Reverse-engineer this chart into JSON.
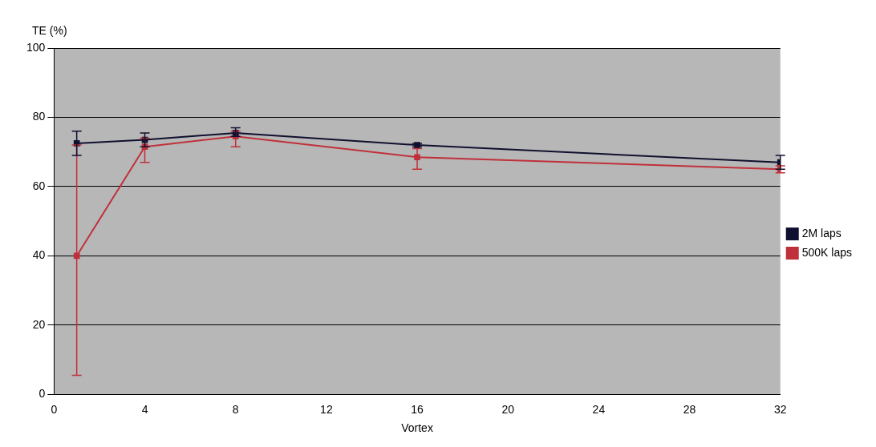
{
  "chart_data": {
    "type": "line",
    "xlabel": "Vortex",
    "ylabel": "TE (%)",
    "x": [
      1,
      4,
      8,
      16,
      32
    ],
    "series": [
      {
        "name": "500K laps",
        "color": "#c0303a",
        "values": [
          40,
          71.5,
          74.5,
          68.5,
          65
        ],
        "errors": [
          [
            5.5,
            72
          ],
          [
            67,
            74
          ],
          [
            71.5,
            76
          ],
          [
            65,
            71
          ],
          [
            64,
            66
          ]
        ]
      },
      {
        "name": "2M laps",
        "color": "#101030",
        "values": [
          72.5,
          73.5,
          75.5,
          72,
          67
        ],
        "errors": [
          [
            69,
            76
          ],
          [
            71.5,
            75.5
          ],
          [
            74.5,
            77
          ],
          [
            71.5,
            72.5
          ],
          [
            65,
            69
          ]
        ]
      }
    ],
    "xlim": [
      0,
      32
    ],
    "xticks": [
      0,
      4,
      8,
      12,
      16,
      20,
      24,
      28,
      32
    ],
    "ylim": [
      0,
      100
    ],
    "yticks": [
      0,
      20,
      40,
      60,
      80,
      100
    ],
    "grid": "y",
    "legend": "right",
    "marker": "square",
    "line_style": "solid"
  }
}
